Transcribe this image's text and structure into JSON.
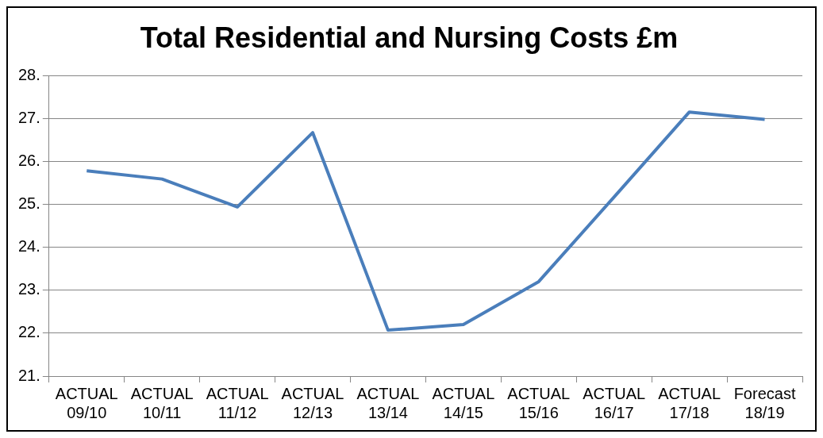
{
  "chart_data": {
    "type": "line",
    "title": "Total Residential and Nursing Costs £m",
    "categories": [
      "ACTUAL 09/10",
      "ACTUAL 10/11",
      "ACTUAL 11/12",
      "ACTUAL 12/13",
      "ACTUAL 13/14",
      "ACTUAL 14/15",
      "ACTUAL 15/16",
      "ACTUAL 16/17",
      "ACTUAL 17/18",
      "Forecast 18/19"
    ],
    "series": [
      {
        "color": "#4a7ebb",
        "values": [
          25.78,
          25.59,
          24.94,
          26.67,
          22.07,
          22.2,
          23.2,
          25.17,
          27.15,
          26.98
        ]
      }
    ],
    "ylim": [
      21,
      28
    ],
    "yticks": [
      {
        "value": 21,
        "label": "21."
      },
      {
        "value": 22,
        "label": "22."
      },
      {
        "value": 23,
        "label": "23."
      },
      {
        "value": 24,
        "label": "24."
      },
      {
        "value": 25,
        "label": "25."
      },
      {
        "value": 26,
        "label": "26."
      },
      {
        "value": 27,
        "label": "27."
      },
      {
        "value": 28,
        "label": "28."
      }
    ],
    "grid": "y",
    "legend": false,
    "line_style": "solid"
  }
}
